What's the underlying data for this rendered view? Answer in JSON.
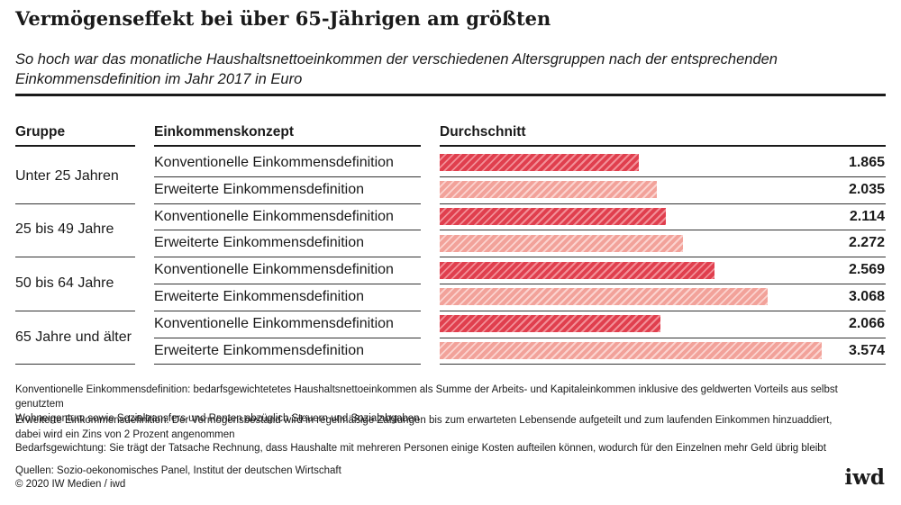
{
  "header": {
    "title": "Vermögenseffekt bei über 65-Jährigen am größten",
    "subtitle_line1": "So hoch war das monatliche Haushaltsnettoeinkommen der verschiedenen Altersgruppen nach der entsprechenden",
    "subtitle_line2": "Einkommensdefinition im Jahr 2017 in Euro"
  },
  "chart_data": {
    "type": "bar",
    "orientation": "horizontal",
    "column_headers": [
      "Gruppe",
      "Einkommenskonzept",
      "Durchschnitt"
    ],
    "groups": [
      "Unter 25 Jahren",
      "25 bis 49 Jahre",
      "50 bis 64 Jahre",
      "65 Jahre und älter"
    ],
    "concepts": [
      "Konventionelle Einkommensdefinition",
      "Erweiterte Einkommensdefinition"
    ],
    "rows": [
      {
        "group": "Unter 25 Jahren",
        "concept": "Konventionelle Einkommensdefinition",
        "kind": "conv",
        "value": 1865,
        "label": "1.865"
      },
      {
        "group": "Unter 25 Jahren",
        "concept": "Erweiterte Einkommensdefinition",
        "kind": "erw",
        "value": 2035,
        "label": "2.035"
      },
      {
        "group": "25 bis 49 Jahre",
        "concept": "Konventionelle Einkommensdefinition",
        "kind": "conv",
        "value": 2114,
        "label": "2.114"
      },
      {
        "group": "25 bis 49 Jahre",
        "concept": "Erweiterte Einkommensdefinition",
        "kind": "erw",
        "value": 2272,
        "label": "2.272"
      },
      {
        "group": "50 bis 64 Jahre",
        "concept": "Konventionelle Einkommensdefinition",
        "kind": "conv",
        "value": 2569,
        "label": "2.569"
      },
      {
        "group": "50 bis 64 Jahre",
        "concept": "Erweiterte Einkommensdefinition",
        "kind": "erw",
        "value": 3068,
        "label": "3.068"
      },
      {
        "group": "65 Jahre und älter",
        "concept": "Konventionelle Einkommensdefinition",
        "kind": "conv",
        "value": 2066,
        "label": "2.066"
      },
      {
        "group": "65 Jahre und älter",
        "concept": "Erweiterte Einkommensdefinition",
        "kind": "erw",
        "value": 3574,
        "label": "3.574"
      }
    ],
    "xlim": [
      0,
      3574
    ],
    "colors": {
      "conv": "#e03f4e",
      "erw": "#f2a29a"
    }
  },
  "footnotes": {
    "note1_line1": "Konventionelle Einkommensdefinition: bedarfsgewichtetetes Haushaltsnettoeinkommen als Summe der Arbeits- und Kapitaleinkommen inklusive des geldwerten Vorteils aus selbst genutztem",
    "note1_line2": "Wohneigentum sowie Sozialtransfers und Renten abzüglich Steuern und Sozialabgaben",
    "note2_line1": "Erweiterte Einkommensdefinition: Der Vermögensbestand wird in regelmäßige Zahlungen bis zum erwarteten Lebensende aufgeteilt und zum laufenden Einkommen hinzuaddiert,",
    "note2_line2": "dabei wird ein Zins von 2 Prozent angenommen",
    "note3": "Bedarfsgewichtung: Sie trägt der Tatsache Rechnung, dass Haushalte mit mehreren Personen einige Kosten aufteilen können, wodurch für den Einzelnen mehr Geld übrig bleibt",
    "sources": "Quellen: Sozio-oekonomisches Panel, Institut der deutschen Wirtschaft",
    "copyright": "© 2020 IW Medien / iwd"
  },
  "brand": {
    "logo_text": "iwd"
  }
}
